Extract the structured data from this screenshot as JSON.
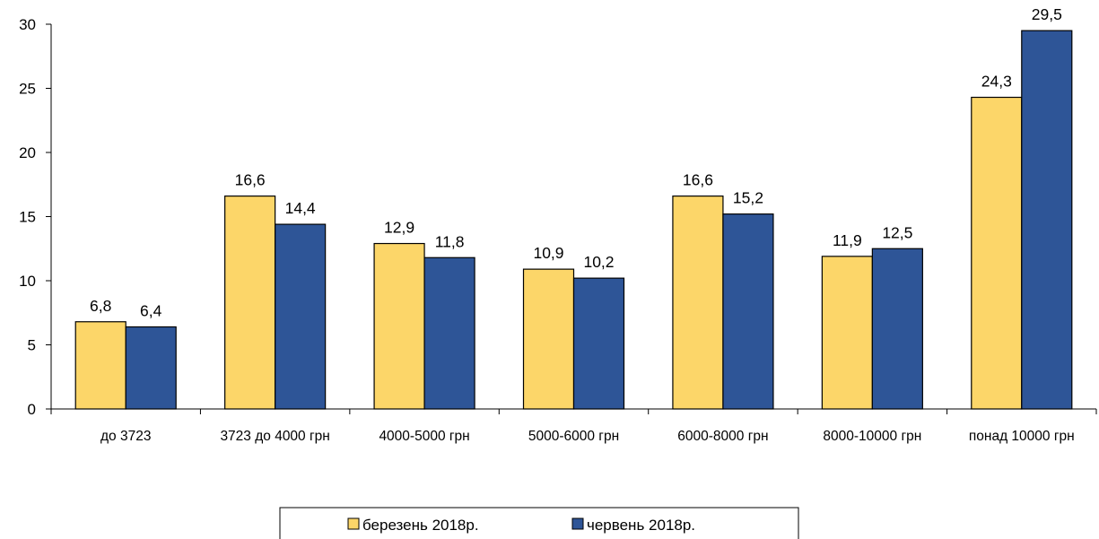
{
  "chart_data": {
    "type": "bar",
    "categories": [
      "до 3723",
      "3723 до 4000 грн",
      "4000-5000 грн",
      "5000-6000 грн",
      "6000-8000 грн",
      "8000-10000 грн",
      "понад 10000 грн"
    ],
    "series": [
      {
        "name": "березень 2018р.",
        "values": [
          6.8,
          16.6,
          12.9,
          10.9,
          16.6,
          11.9,
          24.3
        ],
        "data_labels": [
          "6,8",
          "16,6",
          "12,9",
          "10,9",
          "16,6",
          "11,9",
          "24,3"
        ],
        "color": "#FCD669"
      },
      {
        "name": "червень 2018р.",
        "values": [
          6.4,
          14.4,
          11.8,
          10.2,
          15.2,
          12.5,
          29.5
        ],
        "data_labels": [
          "6,4",
          "14,4",
          "11,8",
          "10,2",
          "15,2",
          "12,5",
          "29,5"
        ],
        "color": "#2E5597"
      }
    ],
    "ylim": [
      0,
      30
    ],
    "yticks": [
      0,
      5,
      10,
      15,
      20,
      25,
      30
    ],
    "ytick_labels": [
      "0",
      "5",
      "10",
      "15",
      "20",
      "25",
      "30"
    ],
    "title": "",
    "xlabel": "",
    "ylabel": "",
    "grid": false,
    "legend_position": "bottom"
  }
}
